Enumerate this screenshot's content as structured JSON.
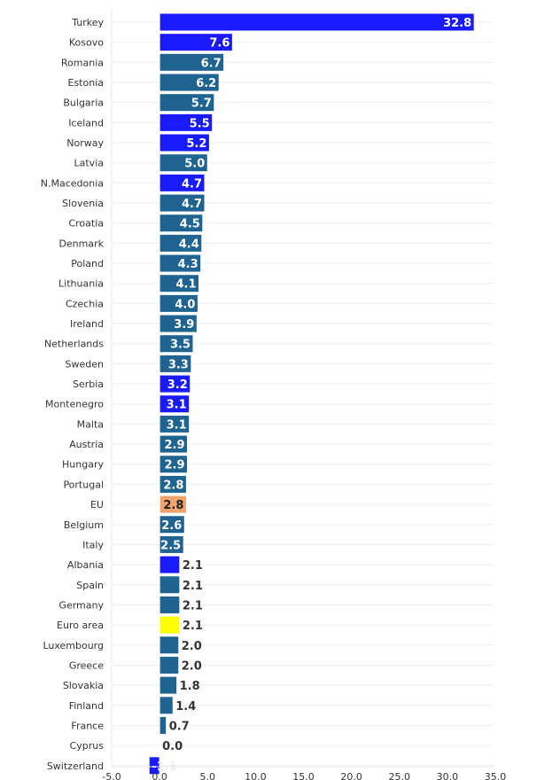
{
  "chart_data": {
    "type": "bar",
    "orientation": "horizontal",
    "title": "",
    "xlabel": "",
    "ylabel": "",
    "xlim": [
      -5,
      35
    ],
    "xticks": [
      "-5.0",
      "0.0",
      "5.0",
      "10.0",
      "15.0",
      "20.0",
      "25.0",
      "30.0",
      "35.0"
    ],
    "xtick_values": [
      -5,
      0,
      5,
      10,
      15,
      20,
      25,
      30,
      35
    ],
    "categories": [
      "Turkey",
      "Kosovo",
      "Romania",
      "Estonia",
      "Bulgaria",
      "Iceland",
      "Norway",
      "Latvia",
      "N.Macedonia",
      "Slovenia",
      "Croatia",
      "Denmark",
      "Poland",
      "Lithuania",
      "Czechia",
      "Ireland",
      "Netherlands",
      "Sweden",
      "Serbia",
      "Montenegro",
      "Malta",
      "Austria",
      "Hungary",
      "Portugal",
      "EU",
      "Belgium",
      "Italy",
      "Albania",
      "Spain",
      "Germany",
      "Euro area",
      "Luxembourg",
      "Greece",
      "Slovakia",
      "Finland",
      "France",
      "Cyprus",
      "Switzerland"
    ],
    "values": [
      32.8,
      7.6,
      6.7,
      6.2,
      5.7,
      5.5,
      5.2,
      5.0,
      4.7,
      4.7,
      4.5,
      4.4,
      4.3,
      4.1,
      4.0,
      3.9,
      3.5,
      3.3,
      3.2,
      3.1,
      3.1,
      2.9,
      2.9,
      2.8,
      2.8,
      2.6,
      2.5,
      2.1,
      2.1,
      2.1,
      2.1,
      2.0,
      2.0,
      1.8,
      1.4,
      0.7,
      0.0,
      -1.1
    ],
    "groups": [
      "non-eu",
      "non-eu",
      "eu",
      "eu",
      "eu",
      "non-eu",
      "non-eu",
      "eu",
      "non-eu",
      "eu",
      "eu",
      "eu",
      "eu",
      "eu",
      "eu",
      "eu",
      "eu",
      "eu",
      "non-eu",
      "non-eu",
      "eu",
      "eu",
      "eu",
      "eu",
      "eu-aggregate",
      "eu",
      "eu",
      "non-eu",
      "eu",
      "eu",
      "euro-area",
      "eu",
      "eu",
      "eu",
      "eu",
      "eu",
      "eu",
      "non-eu"
    ],
    "colors": {
      "non-eu": "#1a1aff",
      "eu": "#1f6391",
      "eu-aggregate": "#f0a36a",
      "euro-area": "#ffff00"
    },
    "grid": true
  }
}
